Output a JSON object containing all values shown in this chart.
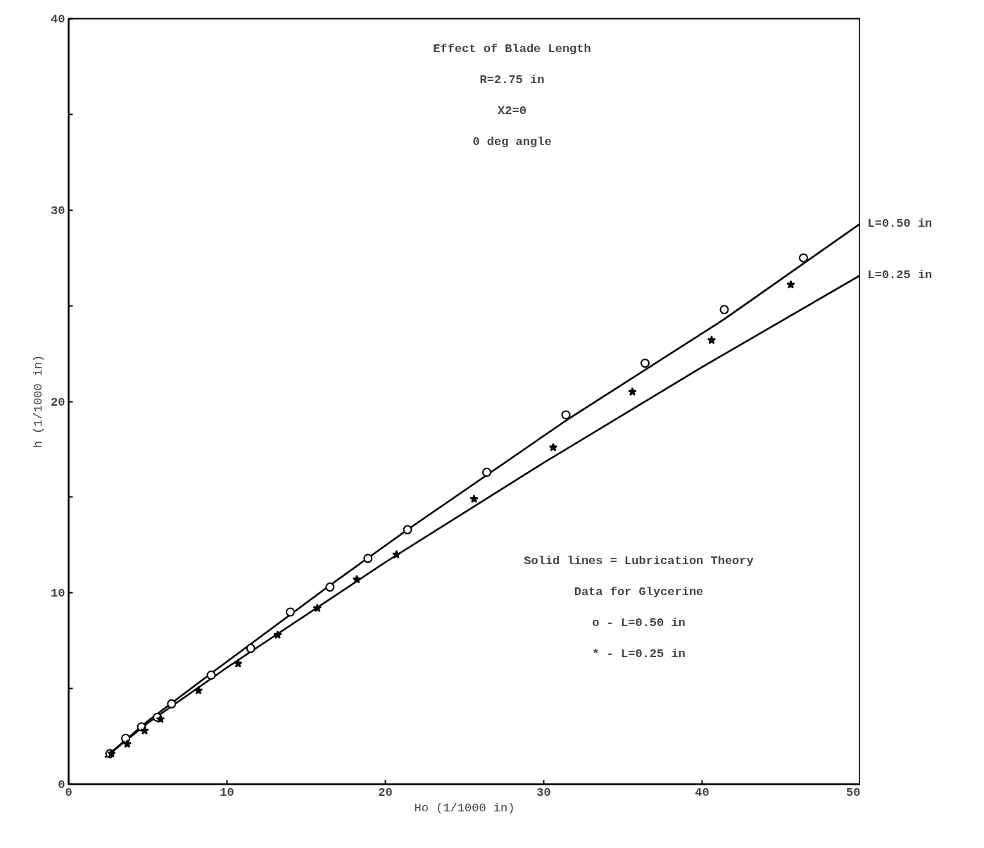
{
  "chart_data": {
    "type": "scatter",
    "title": "Effect of Blade Length",
    "xlabel": "Ho (1/1000 in)",
    "ylabel": "h (1/1000 in)",
    "annotations": [
      "R=2.75 in",
      "X2=0",
      "0 deg angle",
      "Solid lines = Lubrication Theory",
      "Data for Glycerine",
      "o - L=0.50 in",
      "* - L=0.25 in"
    ],
    "xlim": [
      0,
      50
    ],
    "ylim": [
      0,
      40
    ],
    "xticks": [
      0,
      10,
      20,
      30,
      40,
      50
    ],
    "yticks": [
      0,
      {
        "value": 5,
        "label": null
      },
      10,
      {
        "value": 15,
        "label": null
      },
      20,
      {
        "value": 25,
        "label": null
      },
      30,
      {
        "value": 35,
        "label": null
      },
      40
    ],
    "grid": false,
    "series": [
      {
        "marker": "circle",
        "color": "#000000",
        "x": [
          2.6,
          3.6,
          4.6,
          5.6,
          6.5,
          9.0,
          11.5,
          14.0,
          16.5,
          18.9,
          21.4,
          26.4,
          31.4,
          36.4,
          41.4,
          46.4
        ],
        "values": [
          1.6,
          2.4,
          3.0,
          3.5,
          4.2,
          5.7,
          7.1,
          9.0,
          10.3,
          11.8,
          13.3,
          16.3,
          19.3,
          22.0,
          24.8,
          27.5
        ]
      },
      {
        "marker": "star",
        "color": "#000000",
        "x": [
          2.7,
          3.7,
          4.8,
          5.8,
          8.2,
          10.7,
          13.2,
          15.7,
          18.2,
          20.7,
          25.6,
          30.6,
          35.6,
          40.6,
          45.6
        ],
        "values": [
          1.6,
          2.1,
          2.8,
          3.4,
          4.9,
          6.3,
          7.8,
          9.2,
          10.7,
          12.0,
          14.9,
          17.6,
          20.5,
          23.2,
          26.1
        ]
      },
      {
        "type": "line",
        "name": "L=0.50 in",
        "color": "#000000",
        "line_style": "solid",
        "x": [
          2.3,
          5,
          9,
          16.5,
          21.4,
          31.4,
          41.4,
          50
        ],
        "values": [
          1.4,
          3.3,
          5.8,
          10.4,
          13.3,
          19.0,
          24.3,
          29.3
        ]
      },
      {
        "type": "line",
        "name": "L=0.25 in",
        "color": "#000000",
        "line_style": "solid",
        "x": [
          2.3,
          5,
          10,
          20,
          30,
          40,
          50
        ],
        "values": [
          1.4,
          3.2,
          6.1,
          11.6,
          16.8,
          21.8,
          26.6
        ]
      }
    ]
  }
}
